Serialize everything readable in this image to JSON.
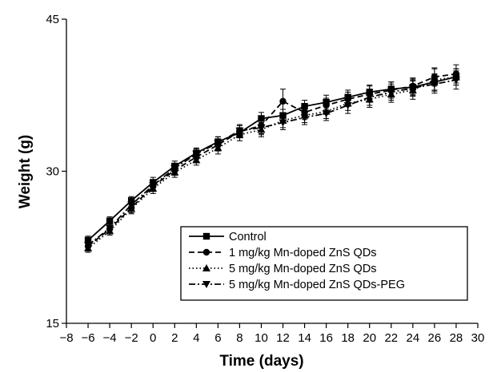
{
  "chart_data": {
    "type": "line",
    "title": "",
    "xlabel": "Time (days)",
    "ylabel": "Weight (g)",
    "xlim": [
      -8,
      30
    ],
    "ylim": [
      15,
      45
    ],
    "xticks": [
      -8,
      -6,
      -4,
      -2,
      0,
      2,
      4,
      6,
      8,
      10,
      12,
      14,
      16,
      18,
      20,
      22,
      24,
      26,
      28,
      30
    ],
    "yticks": [
      15,
      30,
      45
    ],
    "grid": false,
    "legend_position": "bottom-right",
    "x": [
      -6,
      -4,
      -2,
      0,
      2,
      4,
      6,
      8,
      10,
      12,
      14,
      16,
      18,
      20,
      22,
      24,
      26,
      28
    ],
    "series": [
      {
        "name": "Control",
        "marker": "square",
        "line_style": "solid",
        "values": [
          23.2,
          25.1,
          27.1,
          28.9,
          30.5,
          31.8,
          32.9,
          33.8,
          35.2,
          35.5,
          36.4,
          36.8,
          37.3,
          37.8,
          38.1,
          38.3,
          38.8,
          39.3
        ],
        "errors": [
          0.4,
          0.4,
          0.4,
          0.5,
          0.5,
          0.5,
          0.5,
          0.5,
          0.6,
          0.6,
          0.6,
          0.7,
          0.7,
          0.7,
          0.7,
          0.8,
          0.8,
          0.8
        ]
      },
      {
        "name": "1 mg/kg Mn-doped ZnS QDs",
        "marker": "circle",
        "line_style": "dashed",
        "values": [
          22.6,
          24.3,
          26.4,
          28.5,
          30.1,
          31.4,
          32.6,
          33.9,
          34.5,
          36.9,
          35.8,
          36.5,
          37.1,
          37.6,
          38.0,
          38.4,
          39.3,
          39.6
        ],
        "errors": [
          0.4,
          0.4,
          0.5,
          0.5,
          0.5,
          0.5,
          0.6,
          0.6,
          0.8,
          1.2,
          0.7,
          0.7,
          0.7,
          0.8,
          0.8,
          0.8,
          0.9,
          0.9
        ]
      },
      {
        "name": "5 mg/kg Mn-doped ZnS QDs",
        "marker": "triangle-up",
        "line_style": "dotted",
        "values": [
          22.4,
          24.1,
          26.3,
          28.3,
          29.9,
          31.1,
          32.3,
          33.6,
          34.1,
          35.0,
          35.5,
          35.9,
          36.7,
          37.1,
          37.6,
          38.0,
          39.0,
          39.3
        ],
        "errors": [
          0.4,
          0.4,
          0.5,
          0.5,
          0.5,
          0.5,
          0.6,
          0.6,
          0.7,
          0.7,
          0.7,
          0.7,
          0.7,
          0.8,
          0.8,
          0.9,
          1.1,
          0.8
        ]
      },
      {
        "name": "5 mg/kg Mn-doped ZnS QDs-PEG",
        "marker": "triangle-down",
        "line_style": "dash-dot",
        "values": [
          22.7,
          24.4,
          26.7,
          28.6,
          30.3,
          31.7,
          32.8,
          34.0,
          34.3,
          34.8,
          35.3,
          35.7,
          36.5,
          37.3,
          37.8,
          38.2,
          38.6,
          39.0
        ],
        "errors": [
          0.4,
          0.4,
          0.5,
          0.5,
          0.5,
          0.5,
          0.6,
          0.6,
          0.7,
          0.7,
          0.7,
          0.7,
          0.8,
          0.8,
          0.8,
          0.8,
          0.9,
          0.9
        ]
      }
    ]
  }
}
